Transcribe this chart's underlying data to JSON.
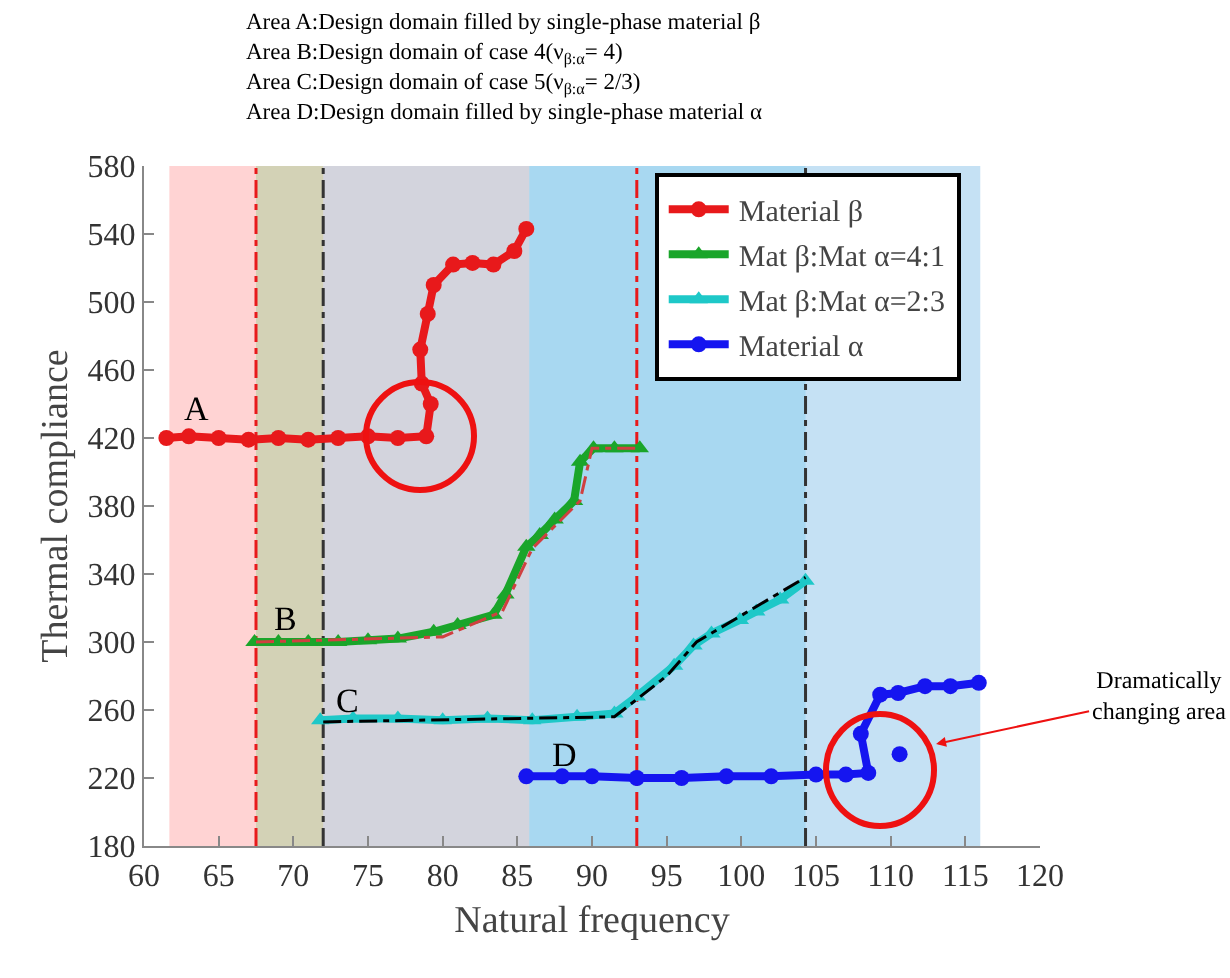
{
  "chart_data": {
    "type": "scatter",
    "title": "Area A:Design domain filled by single-phase material β\nArea B:Design domain of case 4(ν$_{β:α}$= 4)\nArea C:Design domain of case 5(ν$_{β:α}$= 2/3)\nArea D:Design domain filled by single-phase material α",
    "xlabel": "Natural frequency",
    "ylabel": "Thermal compliance",
    "xlim": [
      60,
      120
    ],
    "xticks": [
      60,
      65,
      70,
      75,
      80,
      85,
      90,
      95,
      100,
      105,
      110,
      115,
      120
    ],
    "ylim": [
      180,
      580
    ],
    "yticks": [
      180,
      220,
      260,
      300,
      340,
      380,
      420,
      460,
      500,
      540,
      580
    ],
    "legend": "top right",
    "series": [
      {
        "type": "line",
        "name": "Material β",
        "color": "#e8191b",
        "marker": "circle",
        "x": [
          61.5,
          63,
          65,
          67,
          69,
          71,
          73,
          75,
          77,
          78.9,
          79.2,
          78.6,
          78.5,
          79,
          79.4,
          80.7,
          82,
          83.4,
          84.8,
          85.6
        ],
        "values": [
          420,
          421,
          420,
          419,
          420,
          419,
          420,
          421,
          420,
          421,
          440,
          452,
          472,
          493,
          510,
          522,
          523,
          522,
          530,
          543
        ]
      },
      {
        "type": "line",
        "name": "Mat β:Mat α=4:1",
        "color": "#1aa52a",
        "marker": "triangle",
        "x": [
          67.4,
          69,
          71,
          73,
          75,
          77,
          79.4,
          81,
          83.4,
          84.2,
          85.6,
          86.5,
          87.5,
          88.8,
          89.2,
          90.1,
          91.5,
          93.2
        ],
        "values": [
          300,
          300,
          300,
          300,
          301,
          302,
          306,
          310,
          316,
          328,
          356,
          363,
          372,
          383,
          406,
          414,
          414,
          414
        ]
      },
      {
        "type": "line",
        "name": "Mat β:Mat α=2:3",
        "color": "#1ec8c8",
        "marker": "triangle",
        "x": [
          71.8,
          74,
          77,
          80,
          83,
          86,
          89,
          91.5,
          93,
          95.5,
          96.8,
          98,
          99.9,
          101,
          102.6,
          104.3
        ],
        "values": [
          254,
          255,
          255,
          254,
          255,
          254,
          256,
          258,
          268,
          286,
          298,
          305,
          313,
          318,
          325,
          336
        ]
      },
      {
        "type": "line",
        "name": "Material α",
        "color": "#1515f0",
        "marker": "circle",
        "x": [
          85.6,
          88,
          90,
          93,
          96,
          99,
          102,
          105,
          107,
          108.5,
          108,
          109.3,
          110.5,
          112.3,
          114,
          115.9
        ],
        "values": [
          221,
          221,
          221,
          220,
          220,
          221,
          221,
          222,
          222,
          223,
          246,
          269,
          270,
          274,
          274,
          276
        ]
      },
      {
        "color": "#1515f0",
        "marker": "circle",
        "x": [
          110.6
        ],
        "values": [
          234
        ]
      },
      {
        "type": "line",
        "color": "#d04040",
        "line_style": "dashed",
        "marker": "none",
        "x": [
          67.5,
          80,
          84,
          86,
          89.2,
          90,
          93
        ],
        "values": [
          300,
          303,
          318,
          355,
          383,
          414,
          414
        ]
      },
      {
        "type": "line",
        "color": "#000000",
        "line_style": "dashed",
        "marker": "none",
        "x": [
          72,
          91.5,
          95,
          97,
          104.3
        ],
        "values": [
          253,
          256,
          280,
          300,
          338
        ]
      }
    ],
    "bands": [
      {
        "axis": "x",
        "from": 61.7,
        "to": 85.8,
        "color": "#ff8080"
      },
      {
        "axis": "x",
        "from": 67.5,
        "to": 72,
        "color": "#80d080"
      },
      {
        "axis": "x",
        "from": 72,
        "to": 104.3,
        "color": "#80d8f0"
      },
      {
        "axis": "x",
        "from": 85.8,
        "to": 116,
        "color": "#5aa8e0"
      }
    ],
    "ref_lines": [
      {
        "axis": "x",
        "value": 67.5,
        "color": "#e8191b",
        "line_style": "dashed"
      },
      {
        "axis": "x",
        "value": 93,
        "color": "#e8191b",
        "line_style": "dashed"
      },
      {
        "axis": "x",
        "value": 72,
        "color": "#333333",
        "line_style": "dashed"
      },
      {
        "axis": "x",
        "value": 104.3,
        "color": "#333333",
        "line_style": "dashed"
      }
    ],
    "annotations": [
      "A",
      "B",
      "C",
      "D",
      "Dramatically\nchanging area"
    ]
  }
}
